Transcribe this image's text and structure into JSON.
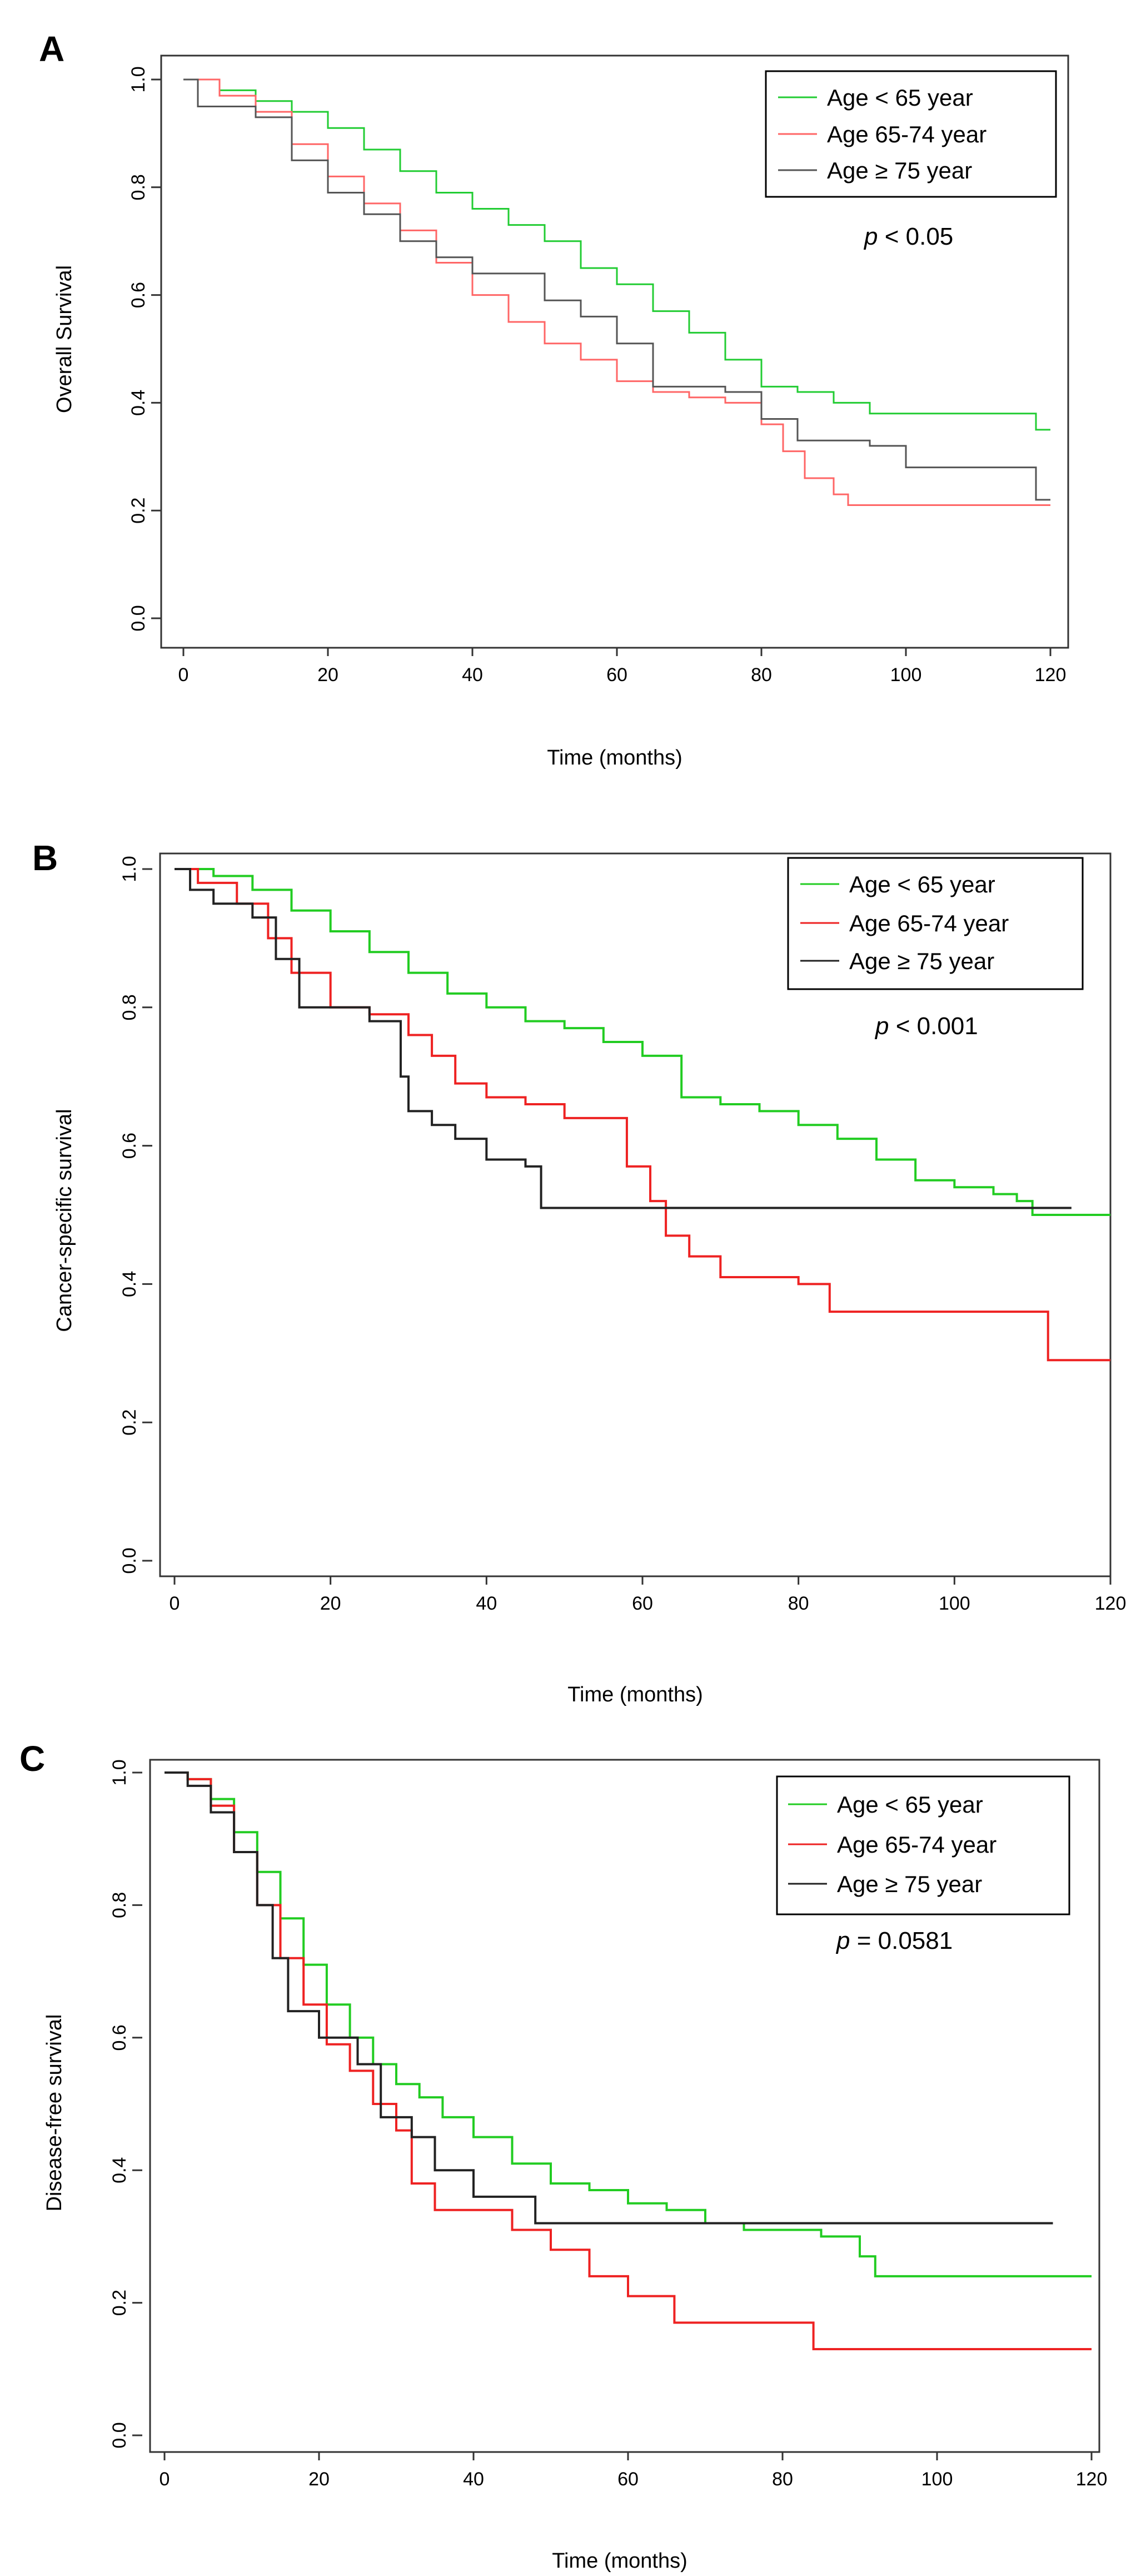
{
  "figure": {
    "panels": [
      "A",
      "B",
      "C"
    ]
  },
  "chart_data": [
    {
      "panel": "A",
      "type": "line",
      "step": true,
      "xlabel": "Time (months)",
      "ylabel": "Overall Survival",
      "xlim": [
        0,
        120
      ],
      "ylim": [
        0,
        1
      ],
      "xticks": [
        0,
        20,
        40,
        60,
        80,
        100,
        120
      ],
      "yticks": [
        0.0,
        0.2,
        0.4,
        0.6,
        0.8,
        1.0
      ],
      "tick_labels_y": [
        "0.0",
        "0.2",
        "0.4",
        "0.6",
        "0.8",
        "1.0"
      ],
      "pvalue_symbol": "p",
      "pvalue_rest": " < 0.05",
      "series": [
        {
          "name": "Age < 65 year",
          "color": "#22cc33",
          "x": [
            0,
            5,
            10,
            15,
            20,
            25,
            30,
            35,
            40,
            45,
            50,
            55,
            60,
            65,
            70,
            75,
            80,
            85,
            90,
            95,
            100,
            105,
            110,
            115,
            118,
            120
          ],
          "y": [
            1.0,
            0.98,
            0.96,
            0.94,
            0.91,
            0.87,
            0.83,
            0.79,
            0.76,
            0.73,
            0.7,
            0.65,
            0.62,
            0.57,
            0.53,
            0.48,
            0.43,
            0.42,
            0.4,
            0.38,
            0.38,
            0.38,
            0.38,
            0.38,
            0.35,
            0.35
          ]
        },
        {
          "name": "Age 65-74 year",
          "color": "#ff6666",
          "x": [
            0,
            5,
            10,
            15,
            20,
            25,
            30,
            35,
            40,
            45,
            50,
            55,
            60,
            65,
            70,
            75,
            80,
            83,
            86,
            90,
            92,
            120
          ],
          "y": [
            1.0,
            0.97,
            0.94,
            0.88,
            0.82,
            0.77,
            0.72,
            0.66,
            0.6,
            0.55,
            0.51,
            0.48,
            0.44,
            0.42,
            0.41,
            0.4,
            0.36,
            0.31,
            0.26,
            0.23,
            0.21,
            0.21
          ]
        },
        {
          "name": "Age ≥ 75 year",
          "color": "#555555",
          "x": [
            0,
            2,
            10,
            15,
            20,
            25,
            30,
            35,
            40,
            50,
            55,
            60,
            65,
            75,
            80,
            85,
            95,
            100,
            118,
            120
          ],
          "y": [
            1.0,
            0.95,
            0.93,
            0.85,
            0.79,
            0.75,
            0.7,
            0.67,
            0.64,
            0.59,
            0.56,
            0.51,
            0.43,
            0.42,
            0.37,
            0.33,
            0.32,
            0.28,
            0.22,
            0.22
          ]
        }
      ]
    },
    {
      "panel": "B",
      "type": "line",
      "step": true,
      "xlabel": "Time (months)",
      "ylabel": "Cancer-specific survival",
      "xlim": [
        0,
        120
      ],
      "ylim": [
        0,
        1
      ],
      "xticks": [
        0,
        20,
        40,
        60,
        80,
        100,
        120
      ],
      "yticks": [
        0.0,
        0.2,
        0.4,
        0.6,
        0.8,
        1.0
      ],
      "tick_labels_y": [
        "0.0",
        "0.2",
        "0.4",
        "0.6",
        "0.8",
        "1.0"
      ],
      "pvalue_symbol": "p",
      "pvalue_rest": " < 0.001",
      "series": [
        {
          "name": "Age < 65 year",
          "color": "#22cc22",
          "x": [
            0,
            5,
            10,
            15,
            20,
            25,
            30,
            35,
            40,
            45,
            50,
            55,
            60,
            65,
            70,
            75,
            80,
            85,
            90,
            95,
            100,
            105,
            108,
            110,
            120
          ],
          "y": [
            1.0,
            0.99,
            0.97,
            0.94,
            0.91,
            0.88,
            0.85,
            0.82,
            0.8,
            0.78,
            0.77,
            0.75,
            0.73,
            0.67,
            0.66,
            0.65,
            0.63,
            0.61,
            0.58,
            0.55,
            0.54,
            0.53,
            0.52,
            0.5,
            0.5
          ]
        },
        {
          "name": "Age 65-74 year",
          "color": "#ee2222",
          "x": [
            0,
            3,
            8,
            12,
            15,
            20,
            25,
            30,
            33,
            36,
            40,
            45,
            50,
            55,
            58,
            61,
            63,
            66,
            70,
            80,
            84,
            100,
            111,
            112,
            120
          ],
          "y": [
            1.0,
            0.98,
            0.95,
            0.9,
            0.85,
            0.8,
            0.79,
            0.76,
            0.73,
            0.69,
            0.67,
            0.66,
            0.64,
            0.64,
            0.57,
            0.52,
            0.47,
            0.44,
            0.41,
            0.4,
            0.36,
            0.36,
            0.36,
            0.29,
            0.29
          ]
        },
        {
          "name": "Age ≥ 75 year",
          "color": "#222222",
          "x": [
            0,
            2,
            5,
            10,
            13,
            16,
            20,
            25,
            28,
            29,
            30,
            33,
            36,
            40,
            45,
            47,
            80,
            100,
            115
          ],
          "y": [
            1.0,
            0.97,
            0.95,
            0.93,
            0.87,
            0.8,
            0.8,
            0.78,
            0.78,
            0.7,
            0.65,
            0.63,
            0.61,
            0.58,
            0.57,
            0.51,
            0.51,
            0.51,
            0.51
          ]
        }
      ]
    },
    {
      "panel": "C",
      "type": "line",
      "step": true,
      "xlabel": "Time (months)",
      "ylabel": "Disease-free survival",
      "xlim": [
        0,
        120
      ],
      "ylim": [
        0,
        1
      ],
      "xticks": [
        0,
        20,
        40,
        60,
        80,
        100,
        120
      ],
      "yticks": [
        0.0,
        0.2,
        0.4,
        0.6,
        0.8,
        1.0
      ],
      "tick_labels_y": [
        "0.0",
        "0.2",
        "0.4",
        "0.6",
        "0.8",
        "1.0"
      ],
      "pvalue_symbol": "p",
      "pvalue_rest": " = 0.0581",
      "series": [
        {
          "name": "Age < 65 year",
          "color": "#22cc22",
          "x": [
            0,
            3,
            6,
            9,
            12,
            15,
            18,
            21,
            24,
            27,
            30,
            33,
            36,
            40,
            45,
            50,
            55,
            60,
            65,
            70,
            75,
            80,
            85,
            90,
            92,
            100,
            120
          ],
          "y": [
            1.0,
            0.99,
            0.96,
            0.91,
            0.85,
            0.78,
            0.71,
            0.65,
            0.6,
            0.56,
            0.53,
            0.51,
            0.48,
            0.45,
            0.41,
            0.38,
            0.37,
            0.35,
            0.34,
            0.32,
            0.31,
            0.31,
            0.3,
            0.27,
            0.24,
            0.24,
            0.24
          ]
        },
        {
          "name": "Age 65-74 year",
          "color": "#ee2222",
          "x": [
            0,
            3,
            6,
            9,
            12,
            15,
            18,
            21,
            24,
            27,
            30,
            32,
            35,
            40,
            45,
            50,
            55,
            60,
            66,
            70,
            80,
            84,
            90,
            100,
            120
          ],
          "y": [
            1.0,
            0.99,
            0.95,
            0.88,
            0.8,
            0.72,
            0.65,
            0.59,
            0.55,
            0.5,
            0.46,
            0.38,
            0.34,
            0.34,
            0.31,
            0.28,
            0.24,
            0.21,
            0.17,
            0.17,
            0.17,
            0.13,
            0.13,
            0.13,
            0.13
          ]
        },
        {
          "name": "Age ≥ 75 year",
          "color": "#222222",
          "x": [
            0,
            3,
            6,
            9,
            12,
            14,
            16,
            20,
            25,
            28,
            32,
            35,
            40,
            45,
            48,
            60,
            80,
            100,
            115
          ],
          "y": [
            1.0,
            0.98,
            0.94,
            0.88,
            0.8,
            0.72,
            0.64,
            0.6,
            0.56,
            0.48,
            0.45,
            0.4,
            0.36,
            0.36,
            0.32,
            0.32,
            0.32,
            0.32,
            0.32
          ]
        }
      ]
    }
  ]
}
